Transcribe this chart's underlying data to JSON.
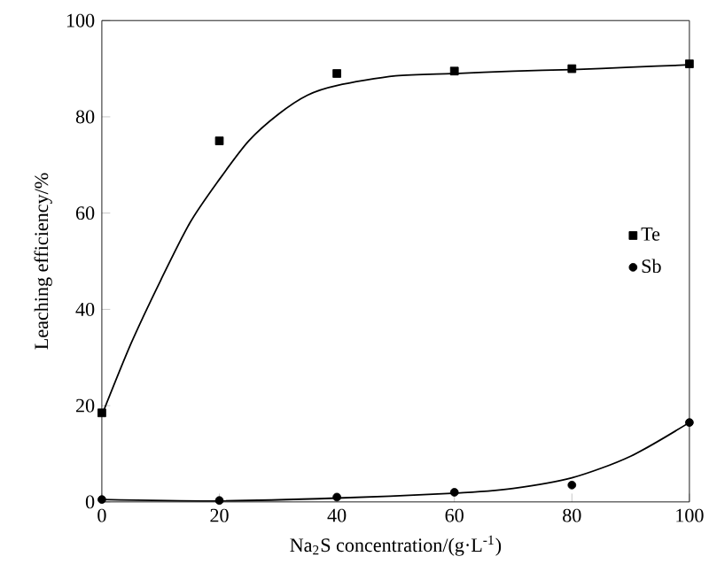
{
  "chart_data": {
    "type": "scatter",
    "xlabel": "Na$_{2}$S concentration/(g·L$^{-1}$)",
    "ylabel": "Leaching efficiency/%",
    "xlim": [
      0,
      100
    ],
    "xticks": [
      0,
      20,
      40,
      60,
      80,
      100
    ],
    "ylim": [
      0,
      100
    ],
    "yticks": [
      0,
      20,
      40,
      60,
      80,
      100
    ],
    "legend": "right",
    "series": [
      {
        "name": "Te",
        "marker": "square",
        "color": "#000000",
        "x": [
          0,
          20,
          40,
          60,
          80,
          100
        ],
        "values": [
          18.5,
          75,
          89,
          89.5,
          90,
          91
        ]
      },
      {
        "name": "Sb",
        "marker": "circle",
        "color": "#000000",
        "x": [
          0,
          20,
          40,
          60,
          80,
          100
        ],
        "values": [
          0.5,
          0.3,
          1,
          2,
          3.5,
          16.5
        ]
      },
      {
        "type": "line",
        "color": "#000000",
        "x": [
          0,
          5,
          10,
          15,
          20,
          25,
          30,
          35,
          40,
          50,
          60,
          70,
          80,
          90,
          100
        ],
        "values": [
          18,
          33,
          46,
          58,
          67,
          75,
          80.5,
          84.5,
          86.5,
          88.5,
          89,
          89.5,
          89.8,
          90.3,
          90.8
        ]
      },
      {
        "type": "line",
        "color": "#000000",
        "x": [
          0,
          20,
          40,
          60,
          70,
          80,
          90,
          100
        ],
        "values": [
          0.5,
          0.2,
          0.8,
          1.8,
          2.8,
          5,
          9.5,
          16.5
        ]
      }
    ]
  }
}
